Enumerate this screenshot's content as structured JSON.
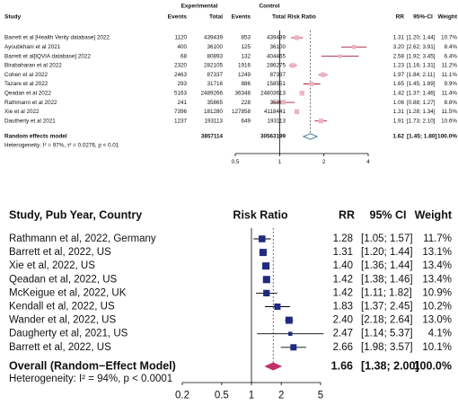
{
  "chart_data": [
    {
      "type": "forest",
      "group_headers": [
        "Experimental",
        "Control"
      ],
      "columns": [
        "Study",
        "Events",
        "Total",
        "Events",
        "Total",
        "Risk Ratio",
        "RR",
        "95%-CI",
        "Weight"
      ],
      "studies": [
        "Barrett et al [Health Verity database] 2022",
        "Ayoubkhani et al  2021",
        "Barrett et al[IQVIA database] 2022",
        "Birabaharan et al 2022",
        "Cohen et al 2022",
        "Tazare et al 2022",
        "Qeadan et al 2022",
        "Rathmann et al 2022",
        "Xie et al 2022",
        "Dautherty et al 2021"
      ],
      "events_exp": [
        1120,
        400,
        68,
        2320,
        2463,
        293,
        5163,
        241,
        7396,
        1237
      ],
      "total_exp": [
        439439,
        36100,
        80893,
        282105,
        87337,
        31716,
        2489266,
        35865,
        181280,
        193113
      ],
      "events_ctrl": [
        853,
        125,
        132,
        1916,
        1249,
        886,
        36348,
        228,
        127858,
        649
      ],
      "total_ctrl": [
        439439,
        36100,
        404465,
        286275,
        87337,
        158551,
        24803613,
        35865,
        4118441,
        193113
      ],
      "values": [
        1.31,
        3.2,
        2.58,
        1.23,
        1.97,
        1.65,
        1.42,
        1.06,
        1.31,
        1.91
      ],
      "value_labels": [
        "1.31",
        "3.20",
        "2.58",
        "1.23",
        "1.97",
        "1.65",
        "1.42",
        "1.06",
        "1.31",
        "1.91"
      ],
      "ci_lower": [
        1.2,
        2.62,
        1.92,
        1.16,
        1.84,
        1.45,
        1.37,
        0.88,
        1.28,
        1.73
      ],
      "ci_upper": [
        1.44,
        3.91,
        3.45,
        1.31,
        2.11,
        1.89,
        1.46,
        1.27,
        1.34,
        2.1
      ],
      "ci_labels": [
        "[1.20; 1.44]",
        "[2.62; 3.91]",
        "[1.92; 3.45]",
        "[1.16; 1.31]",
        "[1.84; 2.11]",
        "[1.45; 1.89]",
        "[1.37; 1.46]",
        "[0.88; 1.27]",
        "[1.28; 1.34]",
        "[1.73; 2.10]"
      ],
      "weights": [
        10.7,
        8.4,
        6.4,
        11.2,
        11.1,
        9.9,
        11.4,
        8.8,
        11.5,
        10.6
      ],
      "weight_labels": [
        "10.7%",
        "8.4%",
        "6.4%",
        "11.2%",
        "11.1%",
        "9.9%",
        "11.4%",
        "8.8%",
        "11.5%",
        "10.6%"
      ],
      "pooled": {
        "label": "Random effects model",
        "total_exp": 3857114,
        "total_ctrl": 30563199,
        "value": 1.62,
        "value_label": "1.62",
        "ci_lower": 1.45,
        "ci_upper": 1.8,
        "ci_label": "[1.45; 1.80]",
        "weight_label": "100.0%"
      },
      "heterogeneity": "Heterogeneity: I² = 97%, τ² = 0.0276, p < 0.01",
      "xlim": [
        0.5,
        4
      ],
      "xticks": [
        0.5,
        1,
        2,
        4
      ],
      "log_x": true,
      "reference_line": 1,
      "square_color": "#eeb3c1",
      "ci_color": "#a3203f",
      "diamond_color": "#2b6c94",
      "diamond_fill": "#ffffff"
    },
    {
      "type": "forest",
      "columns": [
        "Study, Pub Year, Country",
        "Risk Ratio",
        "RR",
        "95% CI",
        "Weight"
      ],
      "studies": [
        "Rathmann et al, 2022, Germany",
        "Barrett et al, 2022, US",
        "Xie et al, 2022, US",
        "Qeadan et al, 2022, US",
        "McKeigue et al, 2022, UK",
        "Kendall et al, 2022, US",
        "Wander et al, 2022, US",
        "Daugherty et al, 2021, US",
        "Barrett et al, 2022, US"
      ],
      "values": [
        1.28,
        1.31,
        1.4,
        1.42,
        1.42,
        1.83,
        2.4,
        2.47,
        2.66
      ],
      "value_labels": [
        "1.28",
        "1.31",
        "1.40",
        "1.42",
        "1.42",
        "1.83",
        "2.40",
        "2.47",
        "2.66"
      ],
      "ci_lower": [
        1.05,
        1.2,
        1.36,
        1.38,
        1.11,
        1.37,
        2.18,
        1.14,
        1.98
      ],
      "ci_upper": [
        1.57,
        1.44,
        1.44,
        1.46,
        1.82,
        2.45,
        2.64,
        5.37,
        3.57
      ],
      "ci_labels": [
        "[1.05; 1.57]",
        "[1.20; 1.44]",
        "[1.36; 1.44]",
        "[1.38; 1.46]",
        "[1.11; 1.82]",
        "[1.37; 2.45]",
        "[2.18; 2.64]",
        "[1.14; 5.37]",
        "[1.98; 3.57]"
      ],
      "weights": [
        11.7,
        13.1,
        13.4,
        13.4,
        10.9,
        10.2,
        13.0,
        4.1,
        10.1
      ],
      "weight_labels": [
        "11.7%",
        "13.1%",
        "13.4%",
        "13.4%",
        "10.9%",
        "10.2%",
        "13.0%",
        "4.1%",
        "10.1%"
      ],
      "pooled": {
        "label": "Overall (Random−Effect Model)",
        "value": 1.66,
        "value_label": "1.66",
        "ci_lower": 1.38,
        "ci_upper": 2.0,
        "ci_label": "[1.38; 2.00]",
        "weight_label": "100.0%"
      },
      "heterogeneity": "Heterogeneity: I² = 94%, p < 0.0001",
      "xlim": [
        0.2,
        5
      ],
      "xticks": [
        0.2,
        0.5,
        1,
        2,
        5
      ],
      "log_x": true,
      "reference_line": 1,
      "square_color": "#1f2a80",
      "ci_color": "#000000",
      "diamond_color": "#c2306a",
      "diamond_fill": "#c2306a"
    }
  ]
}
